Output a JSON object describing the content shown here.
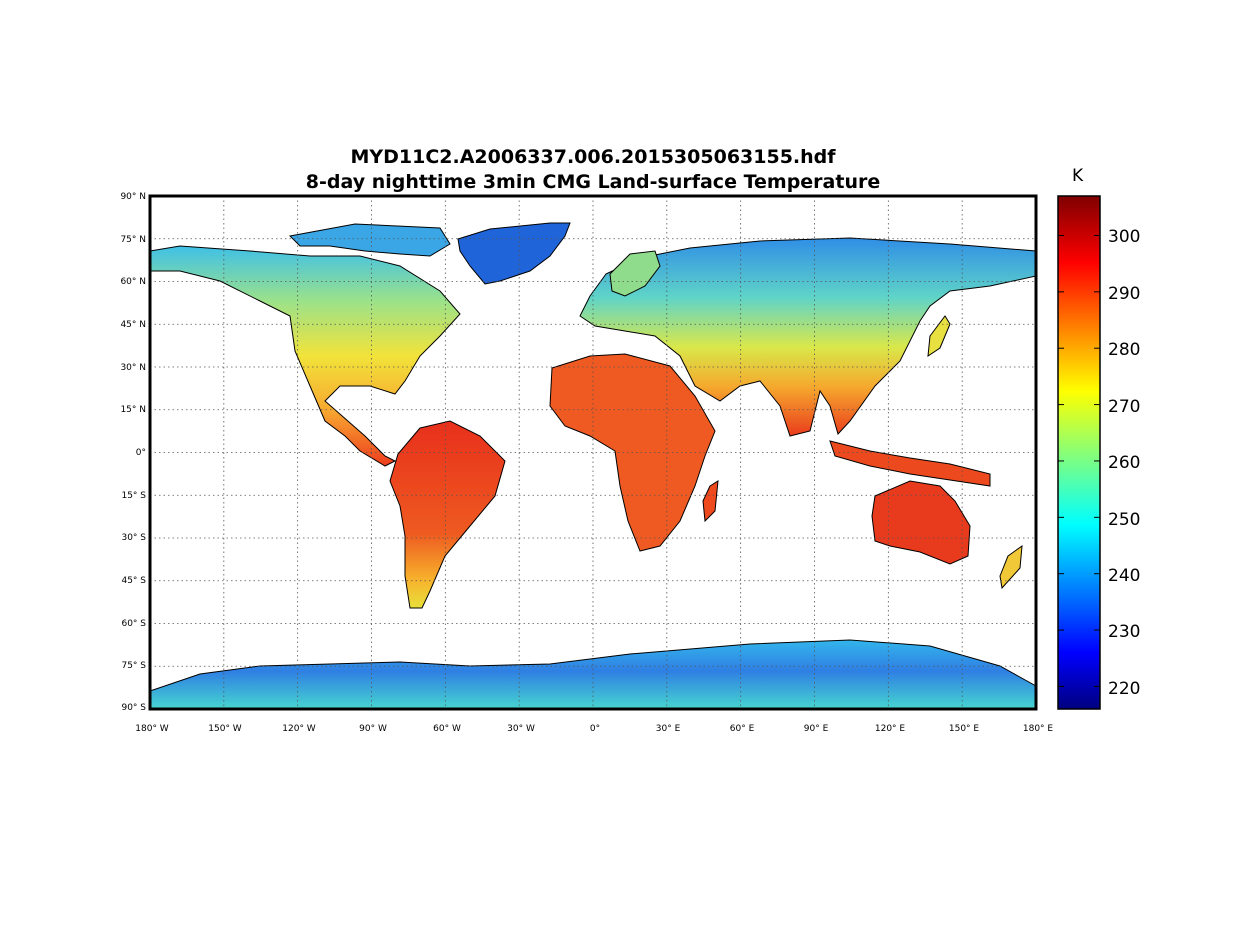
{
  "title_line1": "MYD11C2.A2006337.006.2015305063155.hdf",
  "title_line2": "8-day nighttime 3min CMG Land-surface Temperature",
  "lat_labels": [
    "90° N",
    "75° N",
    "60° N",
    "45° N",
    "30° N",
    "15° N",
    "0°",
    "15° S",
    "30° S",
    "45° S",
    "60° S",
    "75° S",
    "90° S"
  ],
  "lon_labels": [
    "180° W",
    "150° W",
    "120° W",
    "90° W",
    "60° W",
    "30° W",
    "0°",
    "30° E",
    "60° E",
    "90° E",
    "120° E",
    "150° E",
    "180° E"
  ],
  "lat_range": [
    -90,
    90
  ],
  "lon_range": [
    -180,
    180
  ],
  "grid": true,
  "colorbar": {
    "unit": "K",
    "ticks": [
      "300",
      "290",
      "280",
      "270",
      "260",
      "250",
      "240",
      "230",
      "220"
    ],
    "tick_values": [
      300,
      290,
      280,
      270,
      260,
      250,
      240,
      230,
      220
    ],
    "range": [
      216,
      307
    ],
    "colormap": "jet"
  }
}
